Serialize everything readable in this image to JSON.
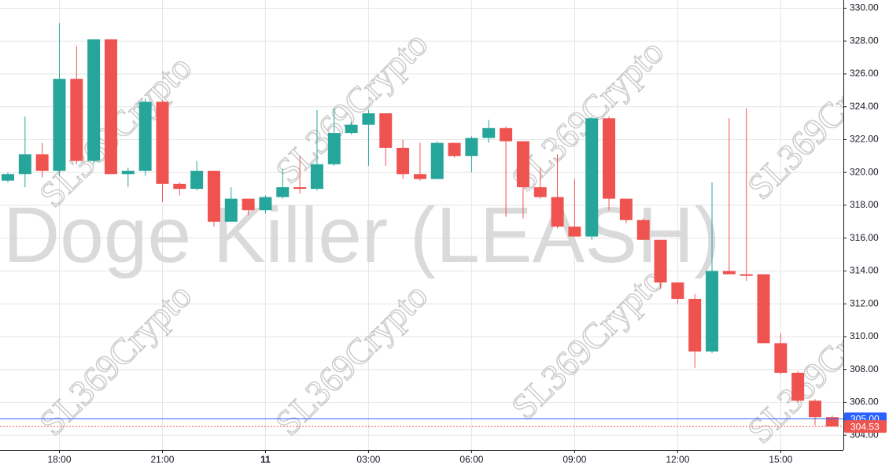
{
  "chart_data": {
    "type": "candlestick",
    "watermark": "Doge Killer (LEASH)",
    "watermark_text": "SL369Crypto",
    "categories": [
      null,
      null,
      null,
      "18:00",
      null,
      null,
      null,
      null,
      null,
      "21:00",
      null,
      null,
      null,
      null,
      null,
      "11",
      null,
      null,
      null,
      null,
      null,
      "03:00",
      null,
      null,
      null,
      null,
      null,
      "06:00",
      null,
      null,
      null,
      null,
      null,
      "09:00",
      null,
      null,
      null,
      null,
      null,
      "12:00",
      null,
      null,
      null,
      null,
      null,
      "15:00",
      null,
      null,
      null
    ],
    "open": [
      319.5,
      319.9,
      321.1,
      320.1,
      325.7,
      320.7,
      328.1,
      319.9,
      320.1,
      324.3,
      319.3,
      319.0,
      320.1,
      317.0,
      318.4,
      317.7,
      318.5,
      319.1,
      319.0,
      320.5,
      322.4,
      322.9,
      323.6,
      321.5,
      319.9,
      319.6,
      321.8,
      321.0,
      322.1,
      322.7,
      321.9,
      319.1,
      318.5,
      316.7,
      316.1,
      323.3,
      318.4,
      317.1,
      315.9,
      313.3,
      312.3,
      309.1,
      314.0,
      313.8,
      313.8,
      309.6,
      307.8,
      306.1,
      305.1
    ],
    "high": [
      320.0,
      323.4,
      321.8,
      329.1,
      327.7,
      328.1,
      328.1,
      320.3,
      324.5,
      324.4,
      319.4,
      320.7,
      320.1,
      319.1,
      318.4,
      318.6,
      320.2,
      321.0,
      323.8,
      323.9,
      323.1,
      323.8,
      323.6,
      322.0,
      321.8,
      321.9,
      321.8,
      322.2,
      323.2,
      322.8,
      321.9,
      320.3,
      321.1,
      319.6,
      323.4,
      323.4,
      318.4,
      317.2,
      315.9,
      313.3,
      312.6,
      319.4,
      323.3,
      323.9,
      313.8,
      310.2,
      307.9,
      306.2,
      305.2
    ],
    "low": [
      319.4,
      319.1,
      319.7,
      319.8,
      320.5,
      320.5,
      319.9,
      319.1,
      319.8,
      318.2,
      318.6,
      318.9,
      316.7,
      317.0,
      317.4,
      317.5,
      318.4,
      318.7,
      318.9,
      320.4,
      322.3,
      320.4,
      320.4,
      319.6,
      319.5,
      319.6,
      320.9,
      320.0,
      321.8,
      317.3,
      317.2,
      318.4,
      316.6,
      316.1,
      315.9,
      317.7,
      316.9,
      315.9,
      312.9,
      312.0,
      308.1,
      309.0,
      313.8,
      313.4,
      309.6,
      307.7,
      306.0,
      304.6,
      304.5
    ],
    "close": [
      319.9,
      321.1,
      320.1,
      325.7,
      320.7,
      328.1,
      319.9,
      320.1,
      324.3,
      319.3,
      319.0,
      320.1,
      317.0,
      318.4,
      317.7,
      318.5,
      319.1,
      319.0,
      320.5,
      322.4,
      322.9,
      323.6,
      321.5,
      319.9,
      319.6,
      321.8,
      321.0,
      322.1,
      322.7,
      321.9,
      319.1,
      318.5,
      316.7,
      316.1,
      323.3,
      318.4,
      317.1,
      315.9,
      313.3,
      312.3,
      309.1,
      314.0,
      313.8,
      313.7,
      309.6,
      307.8,
      306.1,
      305.1,
      304.53
    ],
    "up_color": "#26a69a",
    "down_color": "#ef5350",
    "ylim": [
      303.1,
      330.5
    ],
    "yticks": [
      {
        "value": 304,
        "label": "304.00"
      },
      {
        "value": 306,
        "label": "306.00"
      },
      {
        "value": 308,
        "label": "308.00"
      },
      {
        "value": 310,
        "label": "310.00"
      },
      {
        "value": 312,
        "label": "312.00"
      },
      {
        "value": 314,
        "label": "314.00"
      },
      {
        "value": 316,
        "label": "316.00"
      },
      {
        "value": 318,
        "label": "318.00"
      },
      {
        "value": 320,
        "label": "320.00"
      },
      {
        "value": 322,
        "label": "322.00"
      },
      {
        "value": 324,
        "label": "324.00"
      },
      {
        "value": 326,
        "label": "326.00"
      },
      {
        "value": 328,
        "label": "328.00"
      },
      {
        "value": 330,
        "label": "330.00"
      }
    ],
    "price_lines": [
      {
        "value": 305,
        "label": "305.00",
        "color": "#2962ff",
        "style": "solid"
      },
      {
        "value": 304.53,
        "label": "304.53",
        "color": "#ef5350",
        "style": "dotted"
      }
    ],
    "grid": true
  }
}
